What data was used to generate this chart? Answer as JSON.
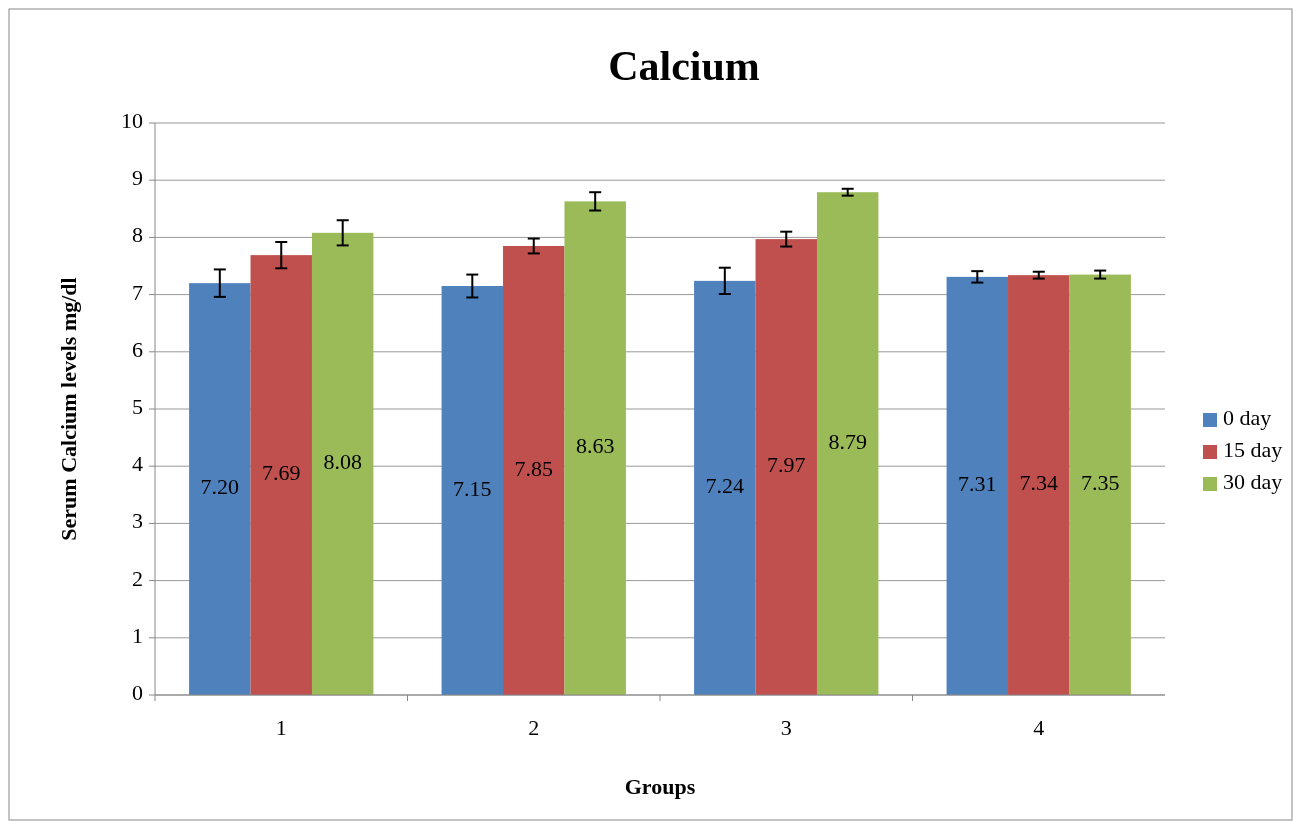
{
  "chart_data": {
    "type": "bar",
    "title": "Calcium",
    "xlabel": "Groups",
    "ylabel": "Serum Calcium levels  mg/dl",
    "categories": [
      "1",
      "2",
      "3",
      "4"
    ],
    "series": [
      {
        "name": "0 day",
        "color": "#4f81bd",
        "values": [
          7.2,
          7.15,
          7.24,
          7.31
        ],
        "errors": [
          0.24,
          0.2,
          0.23,
          0.1
        ],
        "value_labels": [
          "7.20",
          "7.15",
          "7.24",
          "7.31"
        ]
      },
      {
        "name": "15 day",
        "color": "#c0504d",
        "values": [
          7.69,
          7.85,
          7.97,
          7.34
        ],
        "errors": [
          0.23,
          0.13,
          0.13,
          0.06
        ],
        "value_labels": [
          "7.69",
          "7.85",
          "7.97",
          "7.34"
        ]
      },
      {
        "name": "30 day",
        "color": "#9bbb59",
        "values": [
          8.08,
          8.63,
          8.79,
          7.35
        ],
        "errors": [
          0.22,
          0.16,
          0.06,
          0.07
        ],
        "value_labels": [
          "8.08",
          "8.63",
          "8.79",
          "7.35"
        ]
      }
    ],
    "ylim": [
      0,
      10
    ],
    "yticks": [
      0,
      1,
      2,
      3,
      4,
      5,
      6,
      7,
      8,
      9,
      10
    ],
    "grid": "y",
    "legend": "right"
  }
}
